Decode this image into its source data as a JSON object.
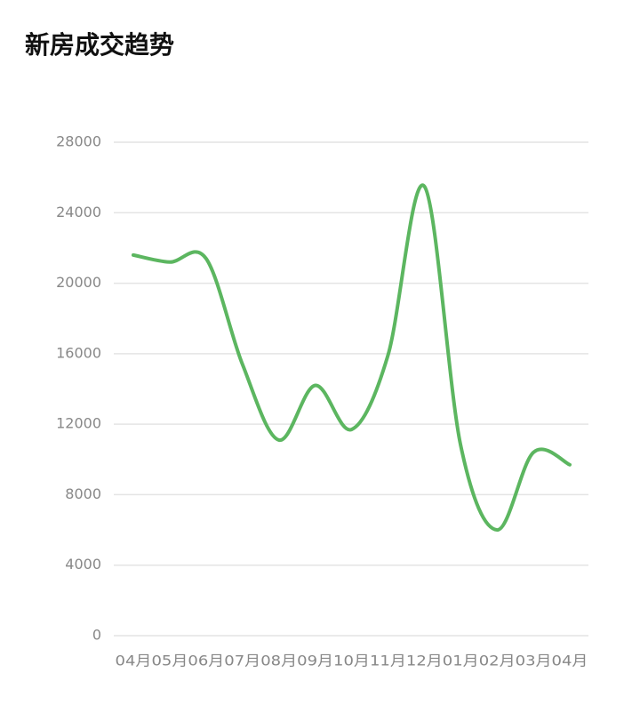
{
  "chart_data": {
    "type": "line",
    "title": "新房成交趋势",
    "categories": [
      "04月",
      "05月",
      "06月",
      "07月",
      "08月",
      "09月",
      "10月",
      "11月",
      "12月",
      "01月",
      "02月",
      "03月",
      "04月"
    ],
    "series": [
      {
        "name": "新房成交",
        "color": "#5cb660",
        "values": [
          21600,
          21200,
          21400,
          15400,
          11100,
          14200,
          11700,
          15900,
          25500,
          10800,
          6000,
          10400,
          9700
        ]
      }
    ],
    "ylim": [
      0,
      28000
    ],
    "yticks": [
      0,
      4000,
      8000,
      12000,
      16000,
      20000,
      24000,
      28000
    ],
    "grid": true
  }
}
